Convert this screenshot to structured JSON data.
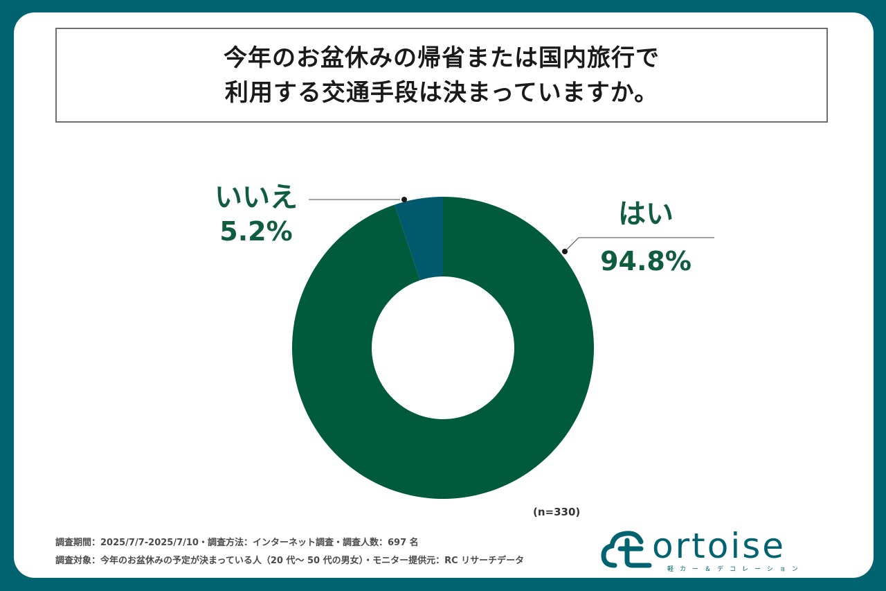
{
  "title": {
    "line1": "今年のお盆休みの帰省または国内旅行で",
    "line2": "利用する交通手段は決まっていますか。"
  },
  "chart_data": {
    "type": "pie",
    "donut": true,
    "slices": [
      {
        "label": "はい",
        "value": 94.8,
        "display": "94.8%",
        "color": "#005a3c"
      },
      {
        "label": "いいえ",
        "value": 5.2,
        "display": "5.2%",
        "color": "#00596d"
      }
    ],
    "n_label": "(n=330)"
  },
  "footnotes": {
    "line1": "調査期間：2025/7/7-2025/7/10・調査方法：インターネット調査・調査人数：697 名",
    "line2": "調査対象：今年のお盆休みの予定が決まっている人（20 代～ 50 代の男女）・モニター提供元：RC リサーチデータ"
  },
  "logo": {
    "word": "ortoise",
    "subtitle": "軽カー＆デコレーション"
  },
  "colors": {
    "background": "#00636f",
    "yes": "#005a3c",
    "no": "#00596d",
    "label": "#0f5c3f"
  }
}
